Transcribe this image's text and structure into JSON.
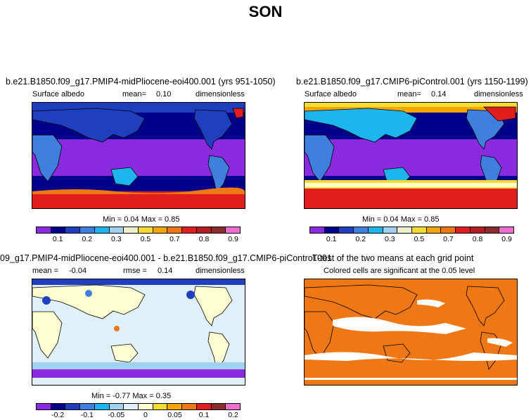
{
  "page_title": "SON",
  "colors": {
    "albedo_scale": [
      "#8a2be2",
      "#00008b",
      "#1f3fbf",
      "#3f7fdf",
      "#1eb4f0",
      "#a0d2f0",
      "#f0f0c8",
      "#f5dc32",
      "#f5a500",
      "#f07814",
      "#e11e1e",
      "#b41e1e",
      "#8c2d2d",
      "#f06ecd"
    ],
    "diff_scale": [
      "#8a2be2",
      "#00008b",
      "#1f3fbf",
      "#3f7fdf",
      "#1eb4f0",
      "#a0d2f0",
      "#e0f0fa",
      "#ffffd2",
      "#f5dc32",
      "#f5a500",
      "#f07814",
      "#e11e1e",
      "#8c2d2d",
      "#f06ecd"
    ],
    "ttest_fill": "#f07814"
  },
  "panels": {
    "p1": {
      "title": "b.e21.B1850.f09_g17.PMIP4-midPliocene-eoi400.001 (yrs 951-1050)",
      "left_label": "Surface albedo",
      "mean_text": "mean=",
      "mean_value": "0.10",
      "units": "dimensionless",
      "minmax": "Min =   0.04 Max =   0.85",
      "ticks": [
        "0.1",
        "0.2",
        "0.3",
        "0.5",
        "0.7",
        "0.8",
        "0.9"
      ]
    },
    "p2": {
      "title": "b.e21.B1850.f09_g17.CMIP6-piControl.001 (yrs 1150-1199)",
      "left_label": "Surface albedo",
      "mean_text": "mean=",
      "mean_value": "0.14",
      "units": "dimensionless",
      "minmax": "Min =   0.04 Max =   0.85",
      "ticks": [
        "0.1",
        "0.2",
        "0.3",
        "0.5",
        "0.7",
        "0.8",
        "0.9"
      ]
    },
    "p3": {
      "title": "09_g17.PMIP4-midPliocene-eoi400.001 - b.e21.B1850.f09_g17.CMIP6-piControl.001",
      "mean_text": "mean =",
      "mean_value": "-0.04",
      "rmse_text": "rmse =",
      "rmse_value": "0.14",
      "units": "dimensionless",
      "minmax": "Min =  -0.77 Max =   0.35",
      "ticks": [
        "-0.2",
        "-0.1",
        "-0.05",
        "0",
        "0.05",
        "0.1",
        "0.2"
      ]
    },
    "p4": {
      "title": "T-test of the two means at each grid point",
      "subtitle": "Colored cells are significant at the 0.05 level"
    }
  }
}
